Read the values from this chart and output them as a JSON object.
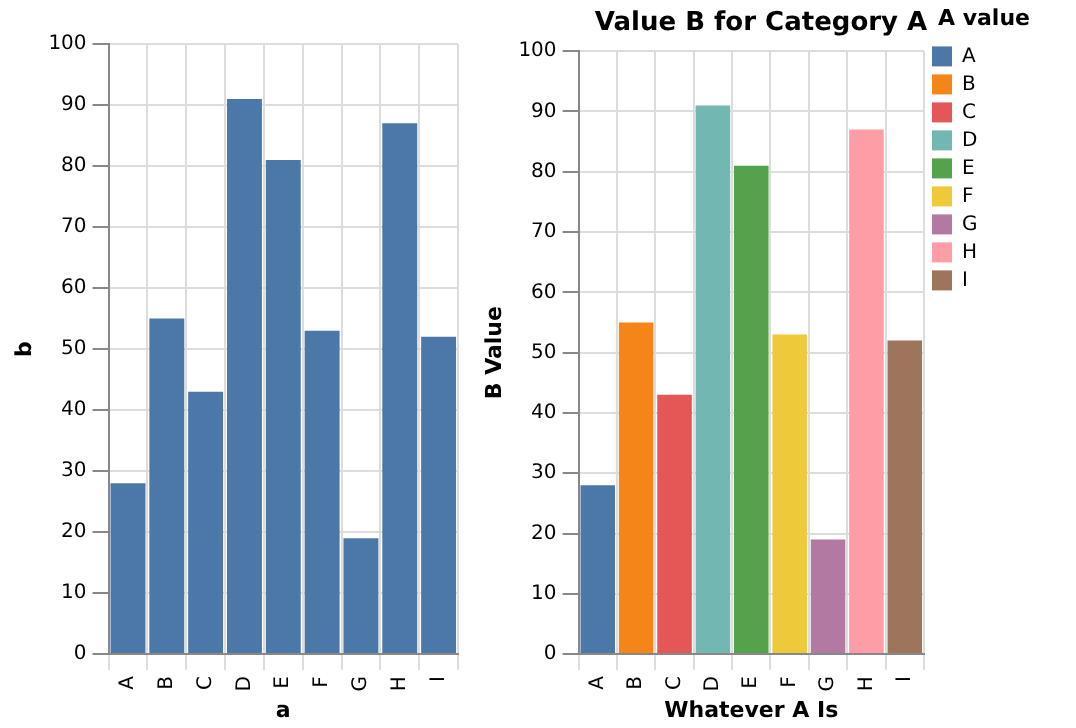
{
  "chart_data": [
    {
      "type": "bar",
      "xlabel": "a",
      "ylabel": "b",
      "categories": [
        "A",
        "B",
        "C",
        "D",
        "E",
        "F",
        "G",
        "H",
        "I"
      ],
      "values": [
        28,
        55,
        43,
        91,
        81,
        53,
        19,
        87,
        52
      ],
      "color": "#4c78a8",
      "ylim": [
        0,
        100
      ],
      "yticks": [
        0,
        10,
        20,
        30,
        40,
        50,
        60,
        70,
        80,
        90,
        100
      ],
      "grid": true
    },
    {
      "type": "bar",
      "title": "Value B for Category A",
      "xlabel": "Whatever A Is",
      "ylabel": "B Value",
      "legend_title": "A value",
      "legend": "right",
      "categories": [
        "A",
        "B",
        "C",
        "D",
        "E",
        "F",
        "G",
        "H",
        "I"
      ],
      "series": [
        {
          "name": "A",
          "color": "#4c78a8",
          "values": [
            28,
            null,
            null,
            null,
            null,
            null,
            null,
            null,
            null
          ]
        },
        {
          "name": "B",
          "color": "#f58518",
          "values": [
            null,
            55,
            null,
            null,
            null,
            null,
            null,
            null,
            null
          ]
        },
        {
          "name": "C",
          "color": "#e45756",
          "values": [
            null,
            null,
            43,
            null,
            null,
            null,
            null,
            null,
            null
          ]
        },
        {
          "name": "D",
          "color": "#72b7b2",
          "values": [
            null,
            null,
            null,
            91,
            null,
            null,
            null,
            null,
            null
          ]
        },
        {
          "name": "E",
          "color": "#54a24b",
          "values": [
            null,
            null,
            null,
            null,
            81,
            null,
            null,
            null,
            null
          ]
        },
        {
          "name": "F",
          "color": "#eeca3b",
          "values": [
            null,
            null,
            null,
            null,
            null,
            53,
            null,
            null,
            null
          ]
        },
        {
          "name": "G",
          "color": "#b279a2",
          "values": [
            null,
            null,
            null,
            null,
            null,
            null,
            19,
            null,
            null
          ]
        },
        {
          "name": "H",
          "color": "#ff9da6",
          "values": [
            null,
            null,
            null,
            null,
            null,
            null,
            null,
            87,
            null
          ]
        },
        {
          "name": "I",
          "color": "#9d755d",
          "values": [
            null,
            null,
            null,
            null,
            null,
            null,
            null,
            null,
            52
          ]
        }
      ],
      "ylim": [
        0,
        100
      ],
      "yticks": [
        0,
        10,
        20,
        30,
        40,
        50,
        60,
        70,
        80,
        90,
        100
      ],
      "grid": true
    }
  ]
}
